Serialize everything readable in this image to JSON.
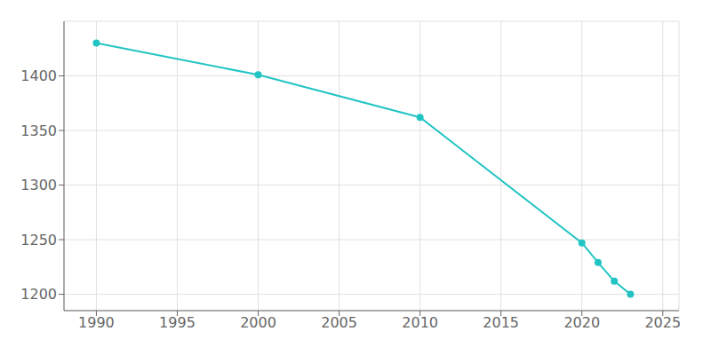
{
  "chart_data": {
    "type": "line",
    "x": [
      1990,
      2000,
      2010,
      2020,
      2021,
      2022,
      2023
    ],
    "values": [
      1430,
      1401,
      1362,
      1247,
      1229,
      1212,
      1200
    ],
    "color": "#22C4C4",
    "marker": "o",
    "xlim": [
      1988,
      2026
    ],
    "ylim": [
      1185,
      1450
    ],
    "xticks": [
      1990,
      1995,
      2000,
      2005,
      2010,
      2015,
      2020,
      2025
    ],
    "yticks": [
      1200,
      1250,
      1300,
      1350,
      1400
    ],
    "grid": true
  }
}
